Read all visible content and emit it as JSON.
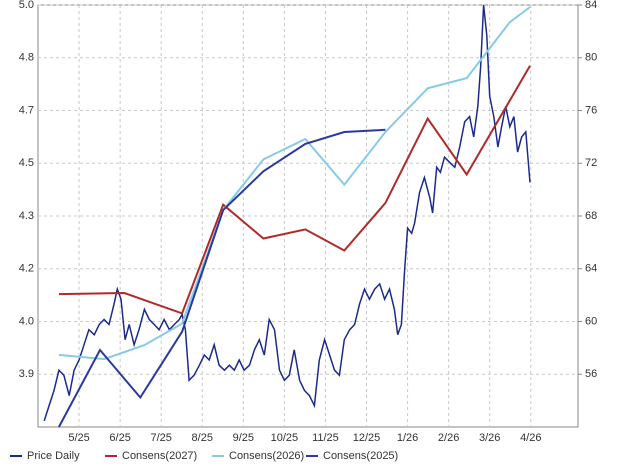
{
  "chart_data": {
    "type": "line",
    "xlim": [
      4,
      17.15
    ],
    "xticks": [
      {
        "value": 5,
        "label": "5/25"
      },
      {
        "value": 6,
        "label": "6/25"
      },
      {
        "value": 7,
        "label": "7/25"
      },
      {
        "value": 8,
        "label": "8/25"
      },
      {
        "value": 9,
        "label": "9/25"
      },
      {
        "value": 10,
        "label": "10/25"
      },
      {
        "value": 11,
        "label": "11/25"
      },
      {
        "value": 12,
        "label": "12/25"
      },
      {
        "value": 13,
        "label": "1/26"
      },
      {
        "value": 14,
        "label": "2/26"
      },
      {
        "value": 15,
        "label": "3/26"
      },
      {
        "value": 16,
        "label": "4/26"
      }
    ],
    "ylim": [
      3.75,
      4.95
    ],
    "yticks": [
      {
        "value": 3.9,
        "label": "3.9"
      },
      {
        "value": 4.05,
        "label": "4.0"
      },
      {
        "value": 4.2,
        "label": "4.2"
      },
      {
        "value": 4.35,
        "label": "4.3"
      },
      {
        "value": 4.5,
        "label": "4.5"
      },
      {
        "value": 4.65,
        "label": "4.7"
      },
      {
        "value": 4.8,
        "label": "4.8"
      },
      {
        "value": 4.95,
        "label": "5.0"
      }
    ],
    "y2lim": [
      52,
      84
    ],
    "y2ticks": [
      56,
      60,
      64,
      68,
      72,
      76,
      80,
      84
    ],
    "grid": true,
    "series": [
      {
        "name": "Price Daily",
        "color": "#1c2a8c",
        "axis": "y2",
        "x": [
          4.15,
          4.27,
          4.39,
          4.51,
          4.63,
          4.76,
          4.88,
          5.0,
          5.12,
          5.24,
          5.37,
          5.49,
          5.61,
          5.73,
          5.85,
          5.93,
          6.02,
          6.12,
          6.22,
          6.34,
          6.46,
          6.59,
          6.71,
          6.83,
          6.95,
          7.07,
          7.2,
          7.32,
          7.44,
          7.51,
          7.59,
          7.68,
          7.8,
          7.93,
          8.05,
          8.17,
          8.29,
          8.41,
          8.54,
          8.66,
          8.78,
          8.9,
          9.02,
          9.15,
          9.27,
          9.39,
          9.51,
          9.63,
          9.76,
          9.88,
          10.0,
          10.12,
          10.24,
          10.37,
          10.49,
          10.61,
          10.73,
          10.85,
          10.98,
          11.1,
          11.22,
          11.34,
          11.46,
          11.59,
          11.71,
          11.83,
          11.95,
          12.07,
          12.2,
          12.32,
          12.44,
          12.56,
          12.68,
          12.76,
          12.85,
          12.93,
          13.0,
          13.1,
          13.17,
          13.29,
          13.41,
          13.54,
          13.61,
          13.71,
          13.8,
          13.9,
          14.02,
          14.15,
          14.27,
          14.39,
          14.51,
          14.61,
          14.71,
          14.78,
          14.85,
          14.93,
          15.0,
          15.1,
          15.2,
          15.29,
          15.39,
          15.49,
          15.59,
          15.68,
          15.78,
          15.88,
          15.98
        ],
        "values": [
          52.46,
          53.62,
          54.77,
          56.31,
          55.92,
          54.38,
          56.31,
          57.08,
          58.23,
          59.38,
          59.0,
          59.77,
          60.15,
          59.77,
          61.31,
          62.46,
          61.69,
          58.62,
          59.77,
          58.23,
          59.38,
          60.92,
          60.15,
          59.77,
          59.38,
          60.15,
          59.38,
          59.77,
          60.15,
          60.54,
          59.38,
          55.54,
          55.92,
          56.69,
          57.46,
          57.08,
          58.23,
          56.69,
          56.31,
          56.69,
          56.31,
          57.08,
          56.31,
          56.69,
          57.85,
          58.62,
          57.46,
          60.15,
          59.38,
          56.31,
          55.54,
          55.92,
          57.85,
          55.54,
          54.77,
          54.38,
          53.62,
          57.08,
          58.62,
          57.46,
          56.31,
          55.92,
          58.62,
          59.38,
          59.77,
          61.31,
          62.46,
          61.69,
          62.46,
          62.85,
          61.69,
          62.46,
          60.92,
          59.0,
          59.77,
          64.0,
          67.08,
          66.69,
          67.46,
          69.77,
          70.92,
          69.38,
          68.23,
          71.69,
          71.31,
          72.46,
          72.08,
          71.69,
          73.23,
          75.15,
          75.54,
          74.0,
          76.31,
          79.38,
          84.0,
          81.69,
          77.08,
          75.54,
          73.23,
          74.77,
          76.31,
          74.77,
          75.54,
          72.85,
          74.0,
          74.38,
          70.54
        ]
      },
      {
        "name": "Consens(2027)",
        "color": "#b02a2a",
        "x": [
          4.51,
          6.1,
          7.51,
          8.51,
          9.49,
          10.51,
          11.46,
          12.46,
          13.49,
          14.44,
          15.98
        ],
        "values": [
          4.128,
          4.131,
          4.073,
          4.382,
          4.286,
          4.312,
          4.252,
          4.387,
          4.627,
          4.468,
          4.777
        ]
      },
      {
        "name": "Consens(2026)",
        "color": "#86cbe6",
        "x": [
          4.51,
          5.61,
          6.59,
          7.51,
          8.51,
          9.49,
          10.51,
          11.46,
          12.46,
          13.49,
          14.44,
          15.49,
          15.98
        ],
        "values": [
          3.955,
          3.943,
          3.983,
          4.044,
          4.367,
          4.511,
          4.569,
          4.439,
          4.589,
          4.713,
          4.742,
          4.901,
          4.944
        ]
      },
      {
        "name": "Consens(2025)",
        "color": "#2a3a9c",
        "x": [
          4.51,
          5.51,
          6.49,
          7.51,
          8.51,
          9.49,
          10.51,
          11.46,
          12.46
        ],
        "values": [
          3.75,
          3.969,
          3.834,
          4.021,
          4.367,
          4.477,
          4.555,
          4.589,
          4.595
        ]
      }
    ]
  }
}
